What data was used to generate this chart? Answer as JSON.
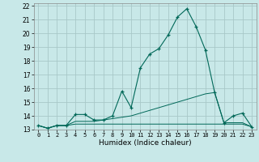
{
  "xlabel": "Humidex (Indice chaleur)",
  "xlim": [
    -0.5,
    23.5
  ],
  "ylim": [
    13,
    22.2
  ],
  "yticks": [
    13,
    14,
    15,
    16,
    17,
    18,
    19,
    20,
    21,
    22
  ],
  "xticks": [
    0,
    1,
    2,
    3,
    4,
    5,
    6,
    7,
    8,
    9,
    10,
    11,
    12,
    13,
    14,
    15,
    16,
    17,
    18,
    19,
    20,
    21,
    22,
    23
  ],
  "bg_color": "#c8e8e8",
  "grid_color": "#a8c8c8",
  "line_color": "#006858",
  "series1_y": [
    13.3,
    13.1,
    13.3,
    13.3,
    14.1,
    14.1,
    13.7,
    13.7,
    14.0,
    15.8,
    14.6,
    17.5,
    18.5,
    18.9,
    19.9,
    21.2,
    21.8,
    20.5,
    18.8,
    15.7,
    13.5,
    14.0,
    14.2,
    13.2
  ],
  "series2_y": [
    13.3,
    13.1,
    13.3,
    13.3,
    13.6,
    13.6,
    13.6,
    13.7,
    13.8,
    13.9,
    14.0,
    14.2,
    14.4,
    14.6,
    14.8,
    15.0,
    15.2,
    15.4,
    15.6,
    15.7,
    13.5,
    13.5,
    13.5,
    13.2
  ],
  "series3_y": [
    13.3,
    13.1,
    13.3,
    13.3,
    13.4,
    13.4,
    13.4,
    13.4,
    13.4,
    13.4,
    13.4,
    13.4,
    13.4,
    13.4,
    13.4,
    13.4,
    13.4,
    13.4,
    13.4,
    13.4,
    13.4,
    13.4,
    13.4,
    13.2
  ]
}
